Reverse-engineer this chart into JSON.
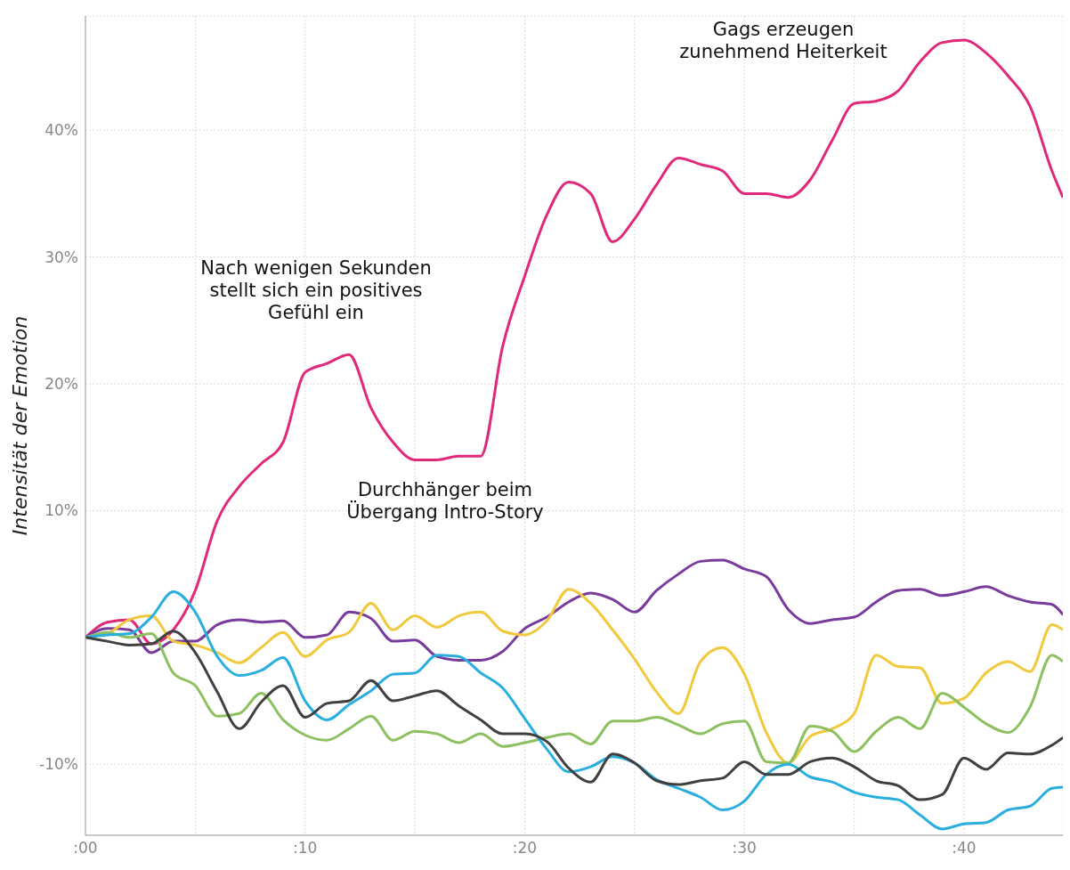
{
  "chart_data": {
    "type": "line",
    "ylabel": "Intensität der Emotion",
    "x": [
      0,
      1,
      2,
      3,
      4,
      5,
      6,
      7,
      8,
      9,
      10,
      11,
      12,
      13,
      14,
      15,
      16,
      17,
      18,
      19,
      20,
      21,
      22,
      23,
      24,
      25,
      26,
      27,
      28,
      29,
      30,
      31,
      32,
      33,
      34,
      35,
      36,
      37,
      38,
      39,
      40,
      41,
      42,
      43,
      44,
      44.5
    ],
    "xlim": [
      0,
      44.5
    ],
    "xticks": [
      {
        "value": 0,
        "label": ":00"
      },
      {
        "value": 5,
        "label": null
      },
      {
        "value": 10,
        "label": ":10"
      },
      {
        "value": 15,
        "label": null
      },
      {
        "value": 20,
        "label": ":20"
      },
      {
        "value": 25,
        "label": null
      },
      {
        "value": 30,
        "label": ":30"
      },
      {
        "value": 35,
        "label": null
      },
      {
        "value": 40,
        "label": ":40"
      }
    ],
    "ylim": [
      -15.6,
      49
    ],
    "yticks": [
      {
        "value": -10,
        "label": "-10%"
      },
      {
        "value": 10,
        "label": "10%"
      },
      {
        "value": 20,
        "label": "20%"
      },
      {
        "value": 30,
        "label": "30%"
      },
      {
        "value": 40,
        "label": "40%"
      }
    ],
    "grid": true,
    "series": [
      {
        "color": "#e0297a",
        "values": [
          0,
          1.2,
          1.4,
          -0.5,
          0.6,
          3.7,
          9.2,
          11.9,
          13.7,
          15.4,
          20.9,
          21.6,
          22.3,
          18.1,
          15.4,
          14.0,
          14.0,
          14.3,
          14.3,
          23,
          28.5,
          33.3,
          35.9,
          35.0,
          31.2,
          33,
          35.7,
          37.8,
          37.3,
          36.8,
          35.0,
          35.0,
          34.7,
          36.1,
          39.2,
          42.1,
          42.3,
          43.1,
          45.4,
          46.9,
          47.1,
          46.1,
          44.3,
          41.9,
          36.8,
          34.7
        ]
      },
      {
        "color": "#7a3c9c",
        "values": [
          0,
          0.7,
          0.6,
          -1.2,
          -0.3,
          -0.3,
          1.0,
          1.4,
          1.2,
          1.3,
          0,
          0.2,
          2.0,
          1.5,
          -0.3,
          -0.2,
          -1.5,
          -1.8,
          -1.8,
          -1.1,
          0.7,
          1.6,
          2.8,
          3.5,
          3.0,
          2.0,
          3.7,
          5.0,
          6.0,
          6.1,
          5.4,
          4.8,
          2.2,
          1.1,
          1.4,
          1.6,
          2.8,
          3.7,
          3.8,
          3.3,
          3.6,
          4.0,
          3.3,
          2.8,
          2.6,
          1.8
        ]
      },
      {
        "color": "#f0c93c",
        "values": [
          0,
          0.3,
          1.4,
          1.7,
          -0.3,
          -0.6,
          -1.2,
          -2.0,
          -0.8,
          0.4,
          -1.5,
          -0.2,
          0.4,
          2.7,
          0.6,
          1.7,
          0.8,
          1.7,
          2.0,
          0.5,
          0.2,
          1.3,
          3.8,
          2.7,
          0.6,
          -1.7,
          -4.3,
          -6.0,
          -1.9,
          -0.8,
          -2.9,
          -7.5,
          -9.9,
          -7.8,
          -7.2,
          -6.0,
          -1.4,
          -2.3,
          -2.4,
          -5.2,
          -4.8,
          -2.8,
          -1.9,
          -2.7,
          1.0,
          0.6
        ]
      },
      {
        "color": "#8cc060",
        "values": [
          0,
          0.4,
          0.0,
          0.3,
          -2.8,
          -3.8,
          -6.2,
          -6.0,
          -4.4,
          -6.5,
          -7.7,
          -8.1,
          -7.2,
          -6.2,
          -8.1,
          -7.4,
          -7.6,
          -8.3,
          -7.6,
          -8.6,
          -8.3,
          -7.9,
          -7.6,
          -8.4,
          -6.6,
          -6.6,
          -6.3,
          -6.9,
          -7.6,
          -6.8,
          -6.6,
          -9.8,
          -9.9,
          -7.0,
          -7.4,
          -9.0,
          -7.4,
          -6.3,
          -7.2,
          -4.4,
          -5.5,
          -6.8,
          -7.5,
          -5.5,
          -1.4,
          -1.9
        ]
      },
      {
        "color": "#2aaee0",
        "values": [
          0,
          0.2,
          0.3,
          1.6,
          3.6,
          2.0,
          -1.5,
          -3.0,
          -2.6,
          -1.6,
          -5.0,
          -6.5,
          -5.3,
          -4.2,
          -2.9,
          -2.8,
          -1.4,
          -1.5,
          -2.8,
          -4.0,
          -6.4,
          -8.8,
          -10.6,
          -10.2,
          -9.4,
          -9.9,
          -11.2,
          -11.9,
          -12.6,
          -13.6,
          -12.9,
          -10.8,
          -10.0,
          -11.0,
          -11.4,
          -12.2,
          -12.6,
          -12.8,
          -14.0,
          -15.1,
          -14.7,
          -14.6,
          -13.6,
          -13.3,
          -11.9,
          -11.8
        ]
      },
      {
        "color": "#404040",
        "values": [
          0,
          -0.3,
          -0.6,
          -0.5,
          0.5,
          -1.2,
          -4.3,
          -7.2,
          -5.1,
          -3.8,
          -6.3,
          -5.2,
          -5.0,
          -3.4,
          -5.0,
          -4.6,
          -4.2,
          -5.4,
          -6.5,
          -7.6,
          -7.6,
          -8.2,
          -10.3,
          -11.4,
          -9.2,
          -9.9,
          -11.3,
          -11.6,
          -11.3,
          -11.1,
          -9.8,
          -10.8,
          -10.8,
          -9.8,
          -9.5,
          -10.2,
          -11.3,
          -11.7,
          -12.8,
          -12.4,
          -9.5,
          -10.4,
          -9.1,
          -9.2,
          -8.5,
          -7.9
        ]
      }
    ],
    "annotations": [
      "Nach wenigen Sekunden\nstellt sich ein positives\nGefühl ein",
      "Durchhänger beim\nÜbergang Intro-Story",
      "Gags erzeugen\nzunehmend Heiterkeit"
    ]
  }
}
